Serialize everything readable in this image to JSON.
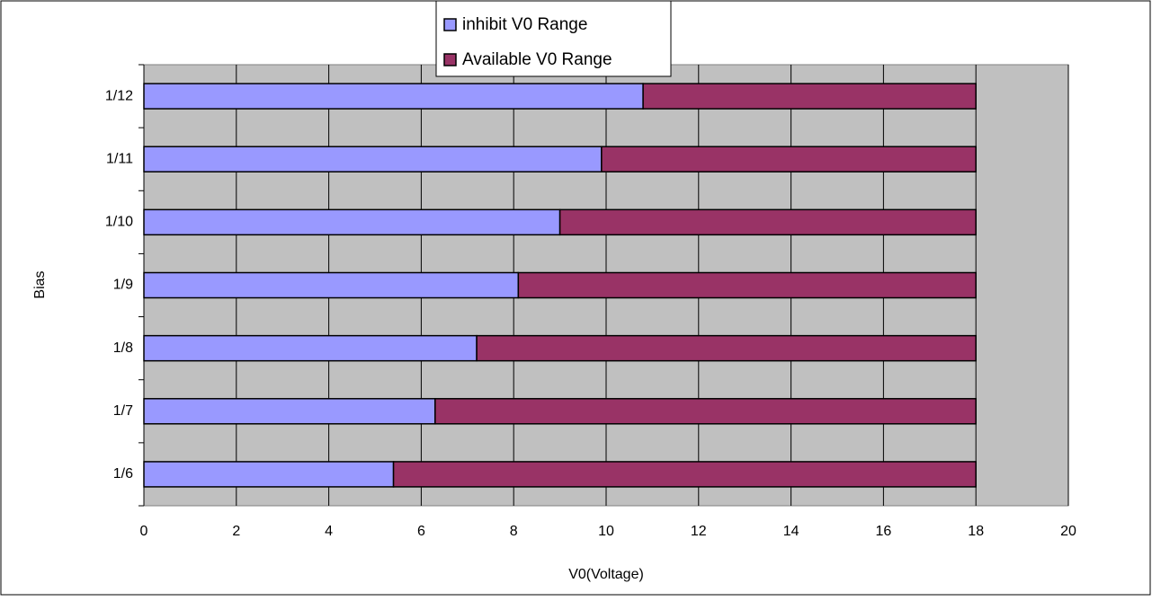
{
  "chart_data": {
    "type": "stacked-barh",
    "x_label": "V0(Voltage)",
    "y_label": "Bias",
    "categories": [
      "1/6",
      "1/7",
      "1/8",
      "1/9",
      "1/10",
      "1/11",
      "1/12"
    ],
    "series": [
      {
        "name": "inhibit V0 Range",
        "color": "#9999ff",
        "values": [
          5.4,
          6.3,
          7.2,
          8.1,
          9.0,
          9.9,
          10.8
        ]
      },
      {
        "name": "Available V0 Range",
        "color": "#993366",
        "values": [
          12.6,
          11.7,
          10.8,
          9.9,
          9.0,
          8.1,
          7.2
        ]
      }
    ],
    "xlim": [
      0,
      20
    ],
    "xticks": [
      0,
      2,
      4,
      6,
      8,
      10,
      12,
      14,
      16,
      18,
      20
    ],
    "grid": true,
    "legend": "top"
  }
}
